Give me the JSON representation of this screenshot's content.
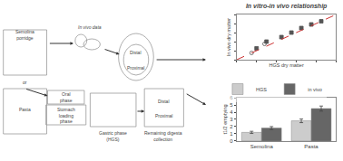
{
  "chart_data": [
    {
      "type": "diagram",
      "annotations": [
        "Semolina\nporridge",
        "or",
        "Pasta",
        "In vivo data",
        "Proximal",
        "Distal",
        "Oral\nphase",
        "Stomach\nloading\nphase",
        "Gastric phase\n(HGS)",
        "Proximal",
        "Distal",
        "Remaining digesta\ncollection"
      ]
    },
    {
      "type": "scatter",
      "title": "In vitro-in vivo relationship",
      "xlabel": "HGS dry matter",
      "ylabel": "In vivo dry matter",
      "xlim": [
        0,
        10
      ],
      "ylim": [
        0,
        10
      ],
      "xticks": [
        0,
        2,
        4,
        6,
        8,
        10
      ],
      "yticks": [
        0,
        2,
        4,
        6,
        8,
        10
      ],
      "tick_labels": false,
      "grid": false,
      "series": [
        {
          "color": "#555555",
          "marker": "square",
          "x": [
            2.0,
            3.0,
            4.5,
            5.5,
            6.5,
            7.5,
            8.5
          ],
          "values": [
            2.5,
            4.0,
            5.0,
            6.0,
            7.0,
            7.8,
            8.5
          ]
        },
        {
          "color": "#555555",
          "marker": "circle-open",
          "x": [
            1.5,
            2.8
          ],
          "values": [
            1.5,
            3.5
          ]
        },
        {
          "type": "line",
          "color": "#cc3333",
          "line_style": "dashed",
          "x": [
            0,
            10
          ],
          "values": [
            0,
            10
          ]
        }
      ]
    },
    {
      "type": "bar",
      "ylabel": "t1/2 emptying",
      "categories": [
        "Semolina",
        "Pasta"
      ],
      "ylim": [
        0,
        6
      ],
      "yticks": [
        0,
        1,
        2,
        3,
        4,
        5,
        6
      ],
      "grid": false,
      "legend": "upper left",
      "series": [
        {
          "name": "HGS",
          "color": "#cccccc",
          "values": [
            1.2,
            2.8
          ],
          "errors": [
            0.15,
            0.25
          ]
        },
        {
          "name": "in vivo",
          "color": "#666666",
          "values": [
            1.8,
            4.5
          ],
          "errors": [
            0.2,
            0.35
          ]
        }
      ]
    }
  ]
}
